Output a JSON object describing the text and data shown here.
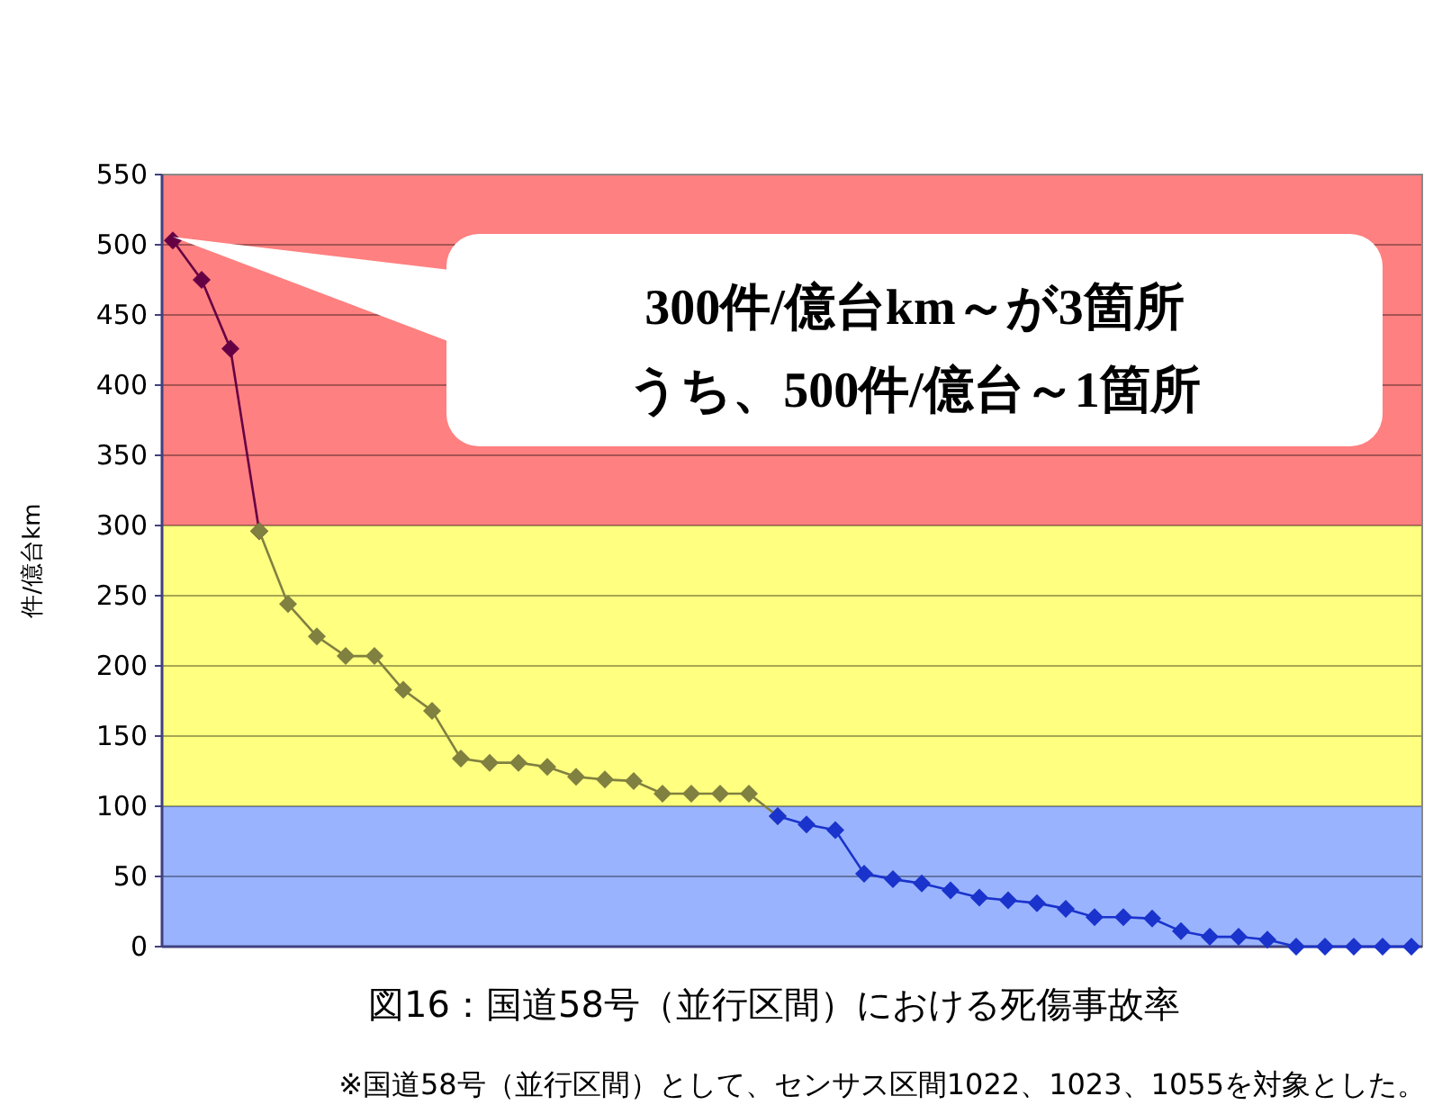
{
  "chart_data": {
    "type": "line",
    "title": "図16：国道58号（並行区間）における死傷事故率",
    "ylabel": "件/億台km",
    "categories": [
      null,
      null,
      null,
      null,
      null,
      null,
      null,
      null,
      null,
      null,
      null,
      null,
      null,
      null,
      null,
      null,
      null,
      null,
      null,
      null,
      null,
      null,
      null,
      null,
      null,
      null,
      null,
      null,
      null,
      null,
      null,
      null,
      null,
      null,
      null,
      null,
      null,
      null,
      null,
      null,
      null,
      null,
      null,
      null
    ],
    "series": [
      {
        "color": "#660044",
        "values": [
          503,
          475,
          426,
          296,
          null,
          null,
          null,
          null,
          null,
          null,
          null,
          null,
          null,
          null,
          null,
          null,
          null,
          null,
          null,
          null,
          null,
          null,
          null,
          null,
          null,
          null,
          null,
          null,
          null,
          null,
          null,
          null,
          null,
          null,
          null,
          null,
          null,
          null,
          null,
          null,
          null,
          null,
          null,
          null
        ]
      },
      {
        "color": "#808040",
        "values": [
          null,
          null,
          null,
          296,
          244,
          221,
          207,
          207,
          183,
          168,
          134,
          131,
          131,
          128,
          121,
          119,
          118,
          109,
          109,
          109,
          109,
          93,
          null,
          null,
          null,
          null,
          null,
          null,
          null,
          null,
          null,
          null,
          null,
          null,
          null,
          null,
          null,
          null,
          null,
          null,
          null,
          null,
          null,
          null
        ]
      },
      {
        "color": "#1a33cc",
        "values": [
          null,
          null,
          null,
          null,
          null,
          null,
          null,
          null,
          null,
          null,
          null,
          null,
          null,
          null,
          null,
          null,
          null,
          null,
          null,
          null,
          null,
          93,
          87,
          83,
          52,
          48,
          45,
          40,
          35,
          33,
          31,
          27,
          21,
          21,
          20,
          11,
          7,
          7,
          5,
          0,
          0,
          0,
          0,
          0
        ]
      }
    ],
    "marker": "diamond",
    "ylim": [
      0,
      550
    ],
    "yticks": [
      0,
      50,
      100,
      150,
      200,
      250,
      300,
      350,
      400,
      450,
      500,
      550
    ],
    "grid": "y",
    "bands": [
      {
        "axis": "y",
        "from": 300,
        "to": 550,
        "color": "#ff8080"
      },
      {
        "axis": "y",
        "from": 100,
        "to": 300,
        "color": "#ffff80"
      },
      {
        "axis": "y",
        "from": 0,
        "to": 100,
        "color": "#99b3ff"
      }
    ],
    "annotations": [
      "300件/億台km～が3箇所",
      "うち、500件/億台～1箇所",
      "※国道58号（並行区間）として、センサス区間1022、1023、1055を対象とした。"
    ]
  }
}
